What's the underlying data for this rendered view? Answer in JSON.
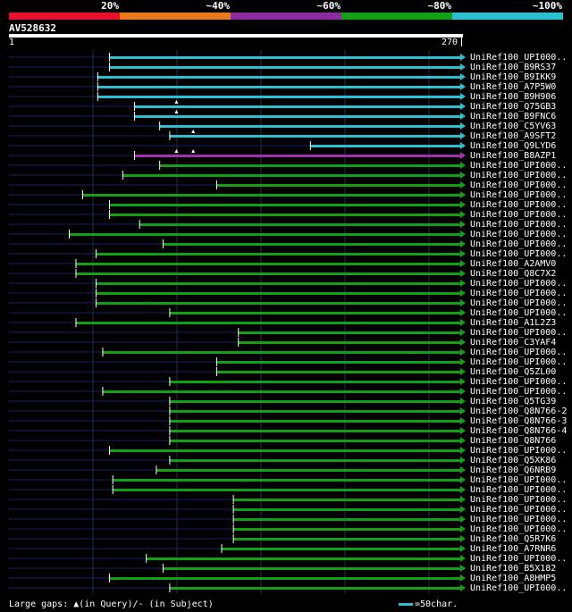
{
  "legend": {
    "segments": [
      {
        "label": "20%",
        "color": "#e8102a"
      },
      {
        "label": "~40%",
        "color": "#e87a1a"
      },
      {
        "label": "~60%",
        "color": "#8c2aa0"
      },
      {
        "label": "~80%",
        "color": "#14a014"
      },
      {
        "label": "~100%",
        "color": "#2bc0d0"
      }
    ]
  },
  "query": {
    "name": "AV528632",
    "start": "1",
    "end": "270",
    "length": 270
  },
  "colors": {
    "query": "#ffffff",
    "unaligned": "#1a2060",
    "grid": "#203050",
    "gap": "#ffffff"
  },
  "hits": [
    {
      "label": "UniRef100_UPI000..",
      "start": 60,
      "end": 270,
      "color": "#2bc0d0",
      "gaps": []
    },
    {
      "label": "UniRef100_B9RS37",
      "start": 60,
      "end": 270,
      "color": "#2bc0d0",
      "gaps": []
    },
    {
      "label": "UniRef100_B9IKK9",
      "start": 53,
      "end": 270,
      "color": "#2bc0d0",
      "gaps": []
    },
    {
      "label": "UniRef100_A7P5W0",
      "start": 53,
      "end": 270,
      "color": "#2bc0d0",
      "gaps": []
    },
    {
      "label": "UniRef100_B9H906",
      "start": 53,
      "end": 270,
      "color": "#2bc0d0",
      "gaps": []
    },
    {
      "label": "UniRef100_Q75GB3",
      "start": 75,
      "end": 270,
      "color": "#2bc0d0",
      "gaps": [
        100
      ]
    },
    {
      "label": "UniRef100_B9FNC6",
      "start": 75,
      "end": 270,
      "color": "#2bc0d0",
      "gaps": [
        100
      ]
    },
    {
      "label": "UniRef100_C5YV63",
      "start": 90,
      "end": 270,
      "color": "#2bc0d0",
      "gaps": []
    },
    {
      "label": "UniRef100_A9SFT2",
      "start": 96,
      "end": 270,
      "color": "#2bc0d0",
      "gaps": [
        110
      ]
    },
    {
      "label": "UniRef100_Q9LYD6",
      "start": 180,
      "end": 270,
      "color": "#2bc0d0",
      "gaps": []
    },
    {
      "label": "UniRef100_B8AZP1",
      "start": 75,
      "end": 270,
      "color": "#a030b0",
      "gaps": [
        100,
        110
      ]
    },
    {
      "label": "UniRef100_UPI000..",
      "start": 90,
      "end": 270,
      "color": "#14a014",
      "gaps": []
    },
    {
      "label": "UniRef100_UPI000..",
      "start": 68,
      "end": 270,
      "color": "#14a014",
      "gaps": []
    },
    {
      "label": "UniRef100_UPI000..",
      "start": 124,
      "end": 270,
      "color": "#14a014",
      "gaps": []
    },
    {
      "label": "UniRef100_UPI000..",
      "start": 44,
      "end": 270,
      "color": "#14a014",
      "gaps": []
    },
    {
      "label": "UniRef100_UPI000..",
      "start": 60,
      "end": 270,
      "color": "#14a014",
      "gaps": []
    },
    {
      "label": "UniRef100_UPI000..",
      "start": 60,
      "end": 270,
      "color": "#14a014",
      "gaps": []
    },
    {
      "label": "UniRef100_UPI000..",
      "start": 78,
      "end": 270,
      "color": "#14a014",
      "gaps": []
    },
    {
      "label": "UniRef100_UPI000..",
      "start": 36,
      "end": 270,
      "color": "#14a014",
      "gaps": []
    },
    {
      "label": "UniRef100_UPI000..",
      "start": 92,
      "end": 270,
      "color": "#14a014",
      "gaps": []
    },
    {
      "label": "UniRef100_UPI000..",
      "start": 52,
      "end": 270,
      "color": "#14a014",
      "gaps": []
    },
    {
      "label": "UniRef100_A2AMV0",
      "start": 40,
      "end": 270,
      "color": "#14a014",
      "gaps": []
    },
    {
      "label": "UniRef100_Q8C7X2",
      "start": 40,
      "end": 270,
      "color": "#14a014",
      "gaps": []
    },
    {
      "label": "UniRef100_UPI000..",
      "start": 52,
      "end": 270,
      "color": "#14a014",
      "gaps": []
    },
    {
      "label": "UniRef100_UPI000..",
      "start": 52,
      "end": 270,
      "color": "#14a014",
      "gaps": []
    },
    {
      "label": "UniRef100_UPI000..",
      "start": 52,
      "end": 270,
      "color": "#14a014",
      "gaps": []
    },
    {
      "label": "UniRef100_UPI000..",
      "start": 96,
      "end": 270,
      "color": "#14a014",
      "gaps": []
    },
    {
      "label": "UniRef100_A1L2Z3",
      "start": 40,
      "end": 270,
      "color": "#14a014",
      "gaps": []
    },
    {
      "label": "UniRef100_UPI000..",
      "start": 137,
      "end": 270,
      "color": "#14a014",
      "gaps": []
    },
    {
      "label": "UniRef100_C3YAF4",
      "start": 137,
      "end": 270,
      "color": "#14a014",
      "gaps": []
    },
    {
      "label": "UniRef100_UPI000..",
      "start": 56,
      "end": 270,
      "color": "#14a014",
      "gaps": []
    },
    {
      "label": "UniRef100_UPI000..",
      "start": 124,
      "end": 270,
      "color": "#14a014",
      "gaps": []
    },
    {
      "label": "UniRef100_Q5ZL00",
      "start": 124,
      "end": 270,
      "color": "#14a014",
      "gaps": []
    },
    {
      "label": "UniRef100_UPI000..",
      "start": 96,
      "end": 270,
      "color": "#14a014",
      "gaps": []
    },
    {
      "label": "UniRef100_UPI000..",
      "start": 56,
      "end": 270,
      "color": "#14a014",
      "gaps": []
    },
    {
      "label": "UniRef100_Q5TG39",
      "start": 96,
      "end": 270,
      "color": "#14a014",
      "gaps": []
    },
    {
      "label": "UniRef100_Q8N766-2",
      "start": 96,
      "end": 270,
      "color": "#14a014",
      "gaps": []
    },
    {
      "label": "UniRef100_Q8N766-3",
      "start": 96,
      "end": 270,
      "color": "#14a014",
      "gaps": []
    },
    {
      "label": "UniRef100_Q8N766-4",
      "start": 96,
      "end": 270,
      "color": "#14a014",
      "gaps": []
    },
    {
      "label": "UniRef100_Q8N766",
      "start": 96,
      "end": 270,
      "color": "#14a014",
      "gaps": []
    },
    {
      "label": "UniRef100_UPI000..",
      "start": 60,
      "end": 270,
      "color": "#14a014",
      "gaps": []
    },
    {
      "label": "UniRef100_Q5XK86",
      "start": 96,
      "end": 270,
      "color": "#14a014",
      "gaps": []
    },
    {
      "label": "UniRef100_Q6NRB9",
      "start": 88,
      "end": 270,
      "color": "#14a014",
      "gaps": []
    },
    {
      "label": "UniRef100_UPI000..",
      "start": 62,
      "end": 270,
      "color": "#14a014",
      "gaps": []
    },
    {
      "label": "UniRef100_UPI000..",
      "start": 62,
      "end": 270,
      "color": "#14a014",
      "gaps": []
    },
    {
      "label": "UniRef100_UPI000..",
      "start": 134,
      "end": 270,
      "color": "#14a014",
      "gaps": []
    },
    {
      "label": "UniRef100_UPI000..",
      "start": 134,
      "end": 270,
      "color": "#14a014",
      "gaps": []
    },
    {
      "label": "UniRef100_UPI000..",
      "start": 134,
      "end": 270,
      "color": "#14a014",
      "gaps": []
    },
    {
      "label": "UniRef100_UPI000..",
      "start": 134,
      "end": 270,
      "color": "#14a014",
      "gaps": []
    },
    {
      "label": "UniRef100_Q5R7K6",
      "start": 134,
      "end": 270,
      "color": "#14a014",
      "gaps": []
    },
    {
      "label": "UniRef100_A7RNR6",
      "start": 127,
      "end": 270,
      "color": "#14a014",
      "gaps": []
    },
    {
      "label": "UniRef100_UPI000..",
      "start": 82,
      "end": 270,
      "color": "#14a014",
      "gaps": []
    },
    {
      "label": "UniRef100_B5X182",
      "start": 92,
      "end": 270,
      "color": "#14a014",
      "gaps": []
    },
    {
      "label": "UniRef100_A8HMP5",
      "start": 60,
      "end": 270,
      "color": "#14a014",
      "gaps": []
    },
    {
      "label": "UniRef100_UPI000..",
      "start": 96,
      "end": 270,
      "color": "#14a014",
      "gaps": []
    }
  ],
  "footer": {
    "note": "Large gaps: ▲(in Query)/- (in Subject)",
    "scale": "=50char."
  }
}
